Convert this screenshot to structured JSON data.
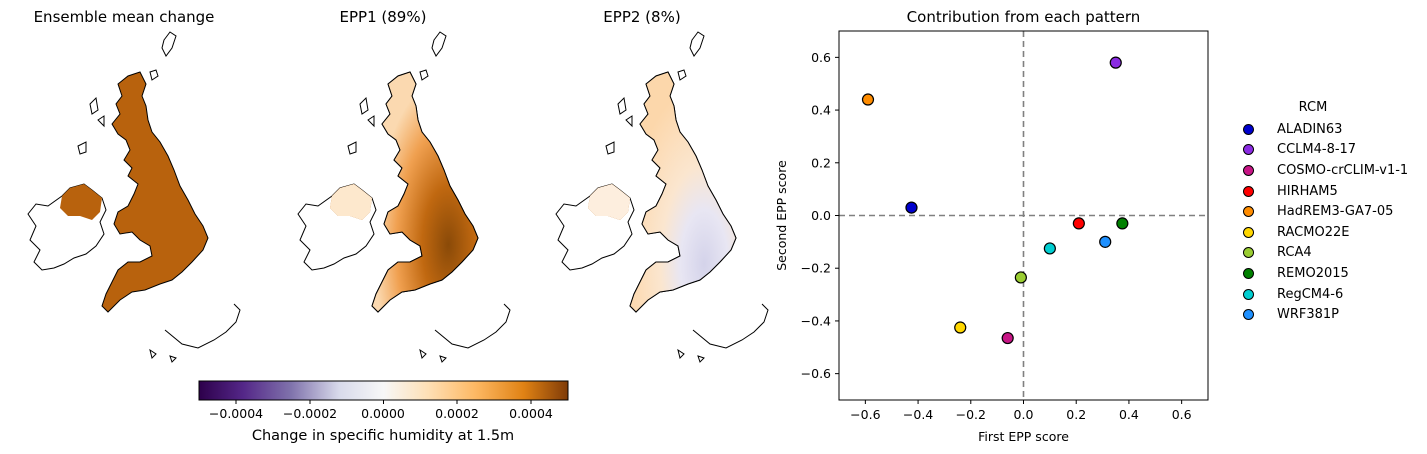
{
  "maps": {
    "titles": [
      "Ensemble mean change",
      "EPP1 (89%)",
      "EPP2 (8%)"
    ],
    "colorbar": {
      "label": "Change in specific humidity at 1.5m",
      "ticks": [
        "−0.0004",
        "−0.0002",
        "0.0000",
        "0.0002",
        "0.0004"
      ],
      "range": [
        -0.0005,
        0.0005
      ],
      "colormap": "PuOr_r"
    }
  },
  "scatter": {
    "title": "Contribution from each pattern",
    "xlabel": "First EPP score",
    "ylabel": "Second EPP score",
    "x_ticks": [
      "−0.6",
      "−0.4",
      "−0.2",
      "0.0",
      "0.2",
      "0.4",
      "0.6"
    ],
    "y_ticks": [
      "0.6",
      "0.4",
      "0.2",
      "0.0",
      "−0.2",
      "−0.4",
      "−0.6"
    ]
  },
  "legend": {
    "title": "RCM"
  },
  "chart_data": {
    "type": "scatter",
    "title": "Contribution from each pattern",
    "xlabel": "First EPP score",
    "ylabel": "Second EPP score",
    "xlim": [
      -0.7,
      0.7
    ],
    "ylim": [
      -0.7,
      0.7
    ],
    "reference_lines": {
      "x": 0.0,
      "y": 0.0,
      "style": "dashed"
    },
    "grid": false,
    "legend_placement": "outside-right",
    "series": [
      {
        "name": "ALADIN63",
        "color": "#0000cd",
        "x": -0.425,
        "y": 0.03
      },
      {
        "name": "CCLM4-8-17",
        "color": "#8a2be2",
        "x": 0.35,
        "y": 0.58
      },
      {
        "name": "COSMO-crCLIM-v1-1",
        "color": "#c71585",
        "x": -0.06,
        "y": -0.465
      },
      {
        "name": "HIRHAM5",
        "color": "#ff0000",
        "x": 0.21,
        "y": -0.03
      },
      {
        "name": "HadREM3-GA7-05",
        "color": "#ff8c00",
        "x": -0.59,
        "y": 0.44
      },
      {
        "name": "RACMO22E",
        "color": "#ffd700",
        "x": -0.24,
        "y": -0.425
      },
      {
        "name": "RCA4",
        "color": "#9acd32",
        "x": -0.01,
        "y": -0.235
      },
      {
        "name": "REMO2015",
        "color": "#008000",
        "x": 0.375,
        "y": -0.03
      },
      {
        "name": "RegCM4-6",
        "color": "#00ced1",
        "x": 0.1,
        "y": -0.125
      },
      {
        "name": "WRF381P",
        "color": "#1e90ff",
        "x": 0.31,
        "y": -0.1
      }
    ]
  }
}
